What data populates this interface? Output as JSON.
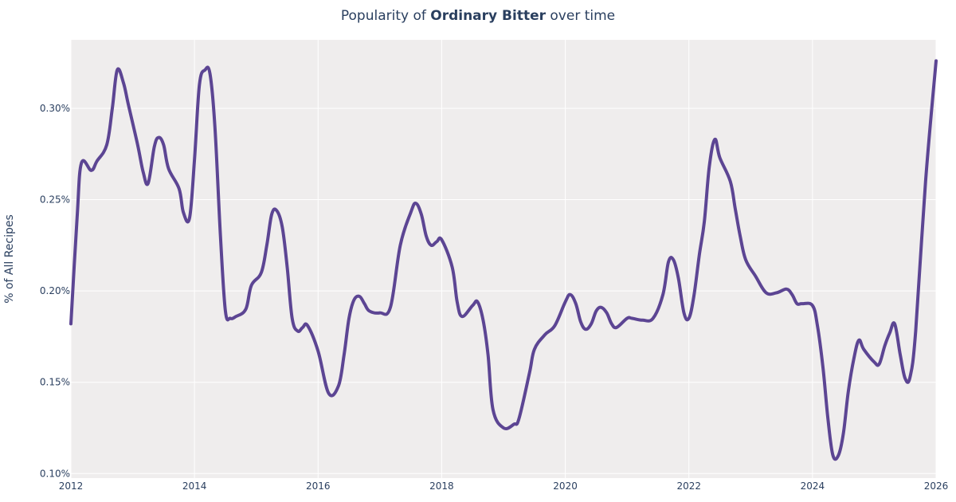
{
  "chart_data": {
    "type": "line",
    "title_prefix": "Popularity of ",
    "title_bold": "Ordinary Bitter",
    "title_suffix": " over time",
    "xlabel": "",
    "ylabel": "% of All Recipes",
    "xlim": [
      2012,
      2026
    ],
    "ylim": [
      0.0975,
      0.3375
    ],
    "x_ticks": [
      2012,
      2014,
      2016,
      2018,
      2020,
      2022,
      2024,
      2026
    ],
    "x_tick_labels": [
      "2012",
      "2014",
      "2016",
      "2018",
      "2020",
      "2022",
      "2024",
      "2026"
    ],
    "y_ticks": [
      0.1,
      0.15,
      0.2,
      0.25,
      0.3
    ],
    "y_tick_labels": [
      "0.10%",
      "0.15%",
      "0.20%",
      "0.25%",
      "0.30%"
    ],
    "grid": true,
    "background": "#efeded",
    "series": [
      {
        "name": "Ordinary Bitter",
        "color": "#5c4593",
        "x": [
          2012.0,
          2012.1,
          2012.17,
          2012.33,
          2012.42,
          2012.58,
          2012.67,
          2012.75,
          2012.85,
          2012.93,
          2013.08,
          2013.17,
          2013.25,
          2013.35,
          2013.42,
          2013.5,
          2013.58,
          2013.75,
          2013.82,
          2013.92,
          2014.0,
          2014.08,
          2014.17,
          2014.25,
          2014.33,
          2014.42,
          2014.5,
          2014.58,
          2014.67,
          2014.83,
          2014.92,
          2015.08,
          2015.17,
          2015.25,
          2015.33,
          2015.42,
          2015.5,
          2015.58,
          2015.67,
          2015.75,
          2015.83,
          2016.0,
          2016.17,
          2016.33,
          2016.42,
          2016.5,
          2016.58,
          2016.67,
          2016.75,
          2016.83,
          2017.0,
          2017.17,
          2017.33,
          2017.5,
          2017.58,
          2017.67,
          2017.75,
          2017.83,
          2017.92,
          2018.0,
          2018.17,
          2018.25,
          2018.33,
          2018.5,
          2018.58,
          2018.67,
          2018.75,
          2018.83,
          2019.0,
          2019.17,
          2019.25,
          2019.42,
          2019.5,
          2019.67,
          2019.83,
          2020.0,
          2020.08,
          2020.17,
          2020.25,
          2020.33,
          2020.42,
          2020.5,
          2020.58,
          2020.67,
          2020.75,
          2020.83,
          2021.0,
          2021.08,
          2021.25,
          2021.42,
          2021.58,
          2021.67,
          2021.75,
          2021.83,
          2021.92,
          2022.0,
          2022.08,
          2022.17,
          2022.25,
          2022.33,
          2022.42,
          2022.5,
          2022.67,
          2022.75,
          2022.83,
          2022.92,
          2023.08,
          2023.25,
          2023.42,
          2023.58,
          2023.67,
          2023.75,
          2023.83,
          2024.0,
          2024.08,
          2024.17,
          2024.25,
          2024.33,
          2024.42,
          2024.5,
          2024.58,
          2024.67,
          2024.75,
          2024.83,
          2025.0,
          2025.08,
          2025.17,
          2025.25,
          2025.33,
          2025.42,
          2025.5,
          2025.58,
          2025.67,
          2025.83,
          2026.0
        ],
        "values": [
          0.182,
          0.24,
          0.27,
          0.266,
          0.271,
          0.28,
          0.3,
          0.321,
          0.314,
          0.302,
          0.28,
          0.265,
          0.259,
          0.279,
          0.284,
          0.28,
          0.267,
          0.256,
          0.243,
          0.24,
          0.272,
          0.313,
          0.321,
          0.319,
          0.29,
          0.23,
          0.189,
          0.185,
          0.186,
          0.19,
          0.203,
          0.21,
          0.225,
          0.242,
          0.244,
          0.235,
          0.213,
          0.185,
          0.178,
          0.18,
          0.181,
          0.167,
          0.144,
          0.148,
          0.165,
          0.185,
          0.195,
          0.197,
          0.193,
          0.189,
          0.188,
          0.191,
          0.225,
          0.243,
          0.248,
          0.242,
          0.23,
          0.225,
          0.227,
          0.228,
          0.213,
          0.194,
          0.186,
          0.192,
          0.194,
          0.184,
          0.165,
          0.135,
          0.125,
          0.127,
          0.13,
          0.155,
          0.168,
          0.176,
          0.181,
          0.194,
          0.198,
          0.193,
          0.183,
          0.179,
          0.182,
          0.189,
          0.191,
          0.188,
          0.182,
          0.18,
          0.185,
          0.185,
          0.184,
          0.185,
          0.198,
          0.216,
          0.217,
          0.207,
          0.188,
          0.185,
          0.197,
          0.22,
          0.238,
          0.268,
          0.283,
          0.273,
          0.26,
          0.245,
          0.23,
          0.217,
          0.208,
          0.199,
          0.199,
          0.201,
          0.198,
          0.193,
          0.193,
          0.192,
          0.181,
          0.158,
          0.13,
          0.11,
          0.11,
          0.122,
          0.145,
          0.163,
          0.173,
          0.168,
          0.161,
          0.16,
          0.17,
          0.177,
          0.182,
          0.165,
          0.152,
          0.153,
          0.178,
          0.26,
          0.326
        ]
      }
    ]
  }
}
